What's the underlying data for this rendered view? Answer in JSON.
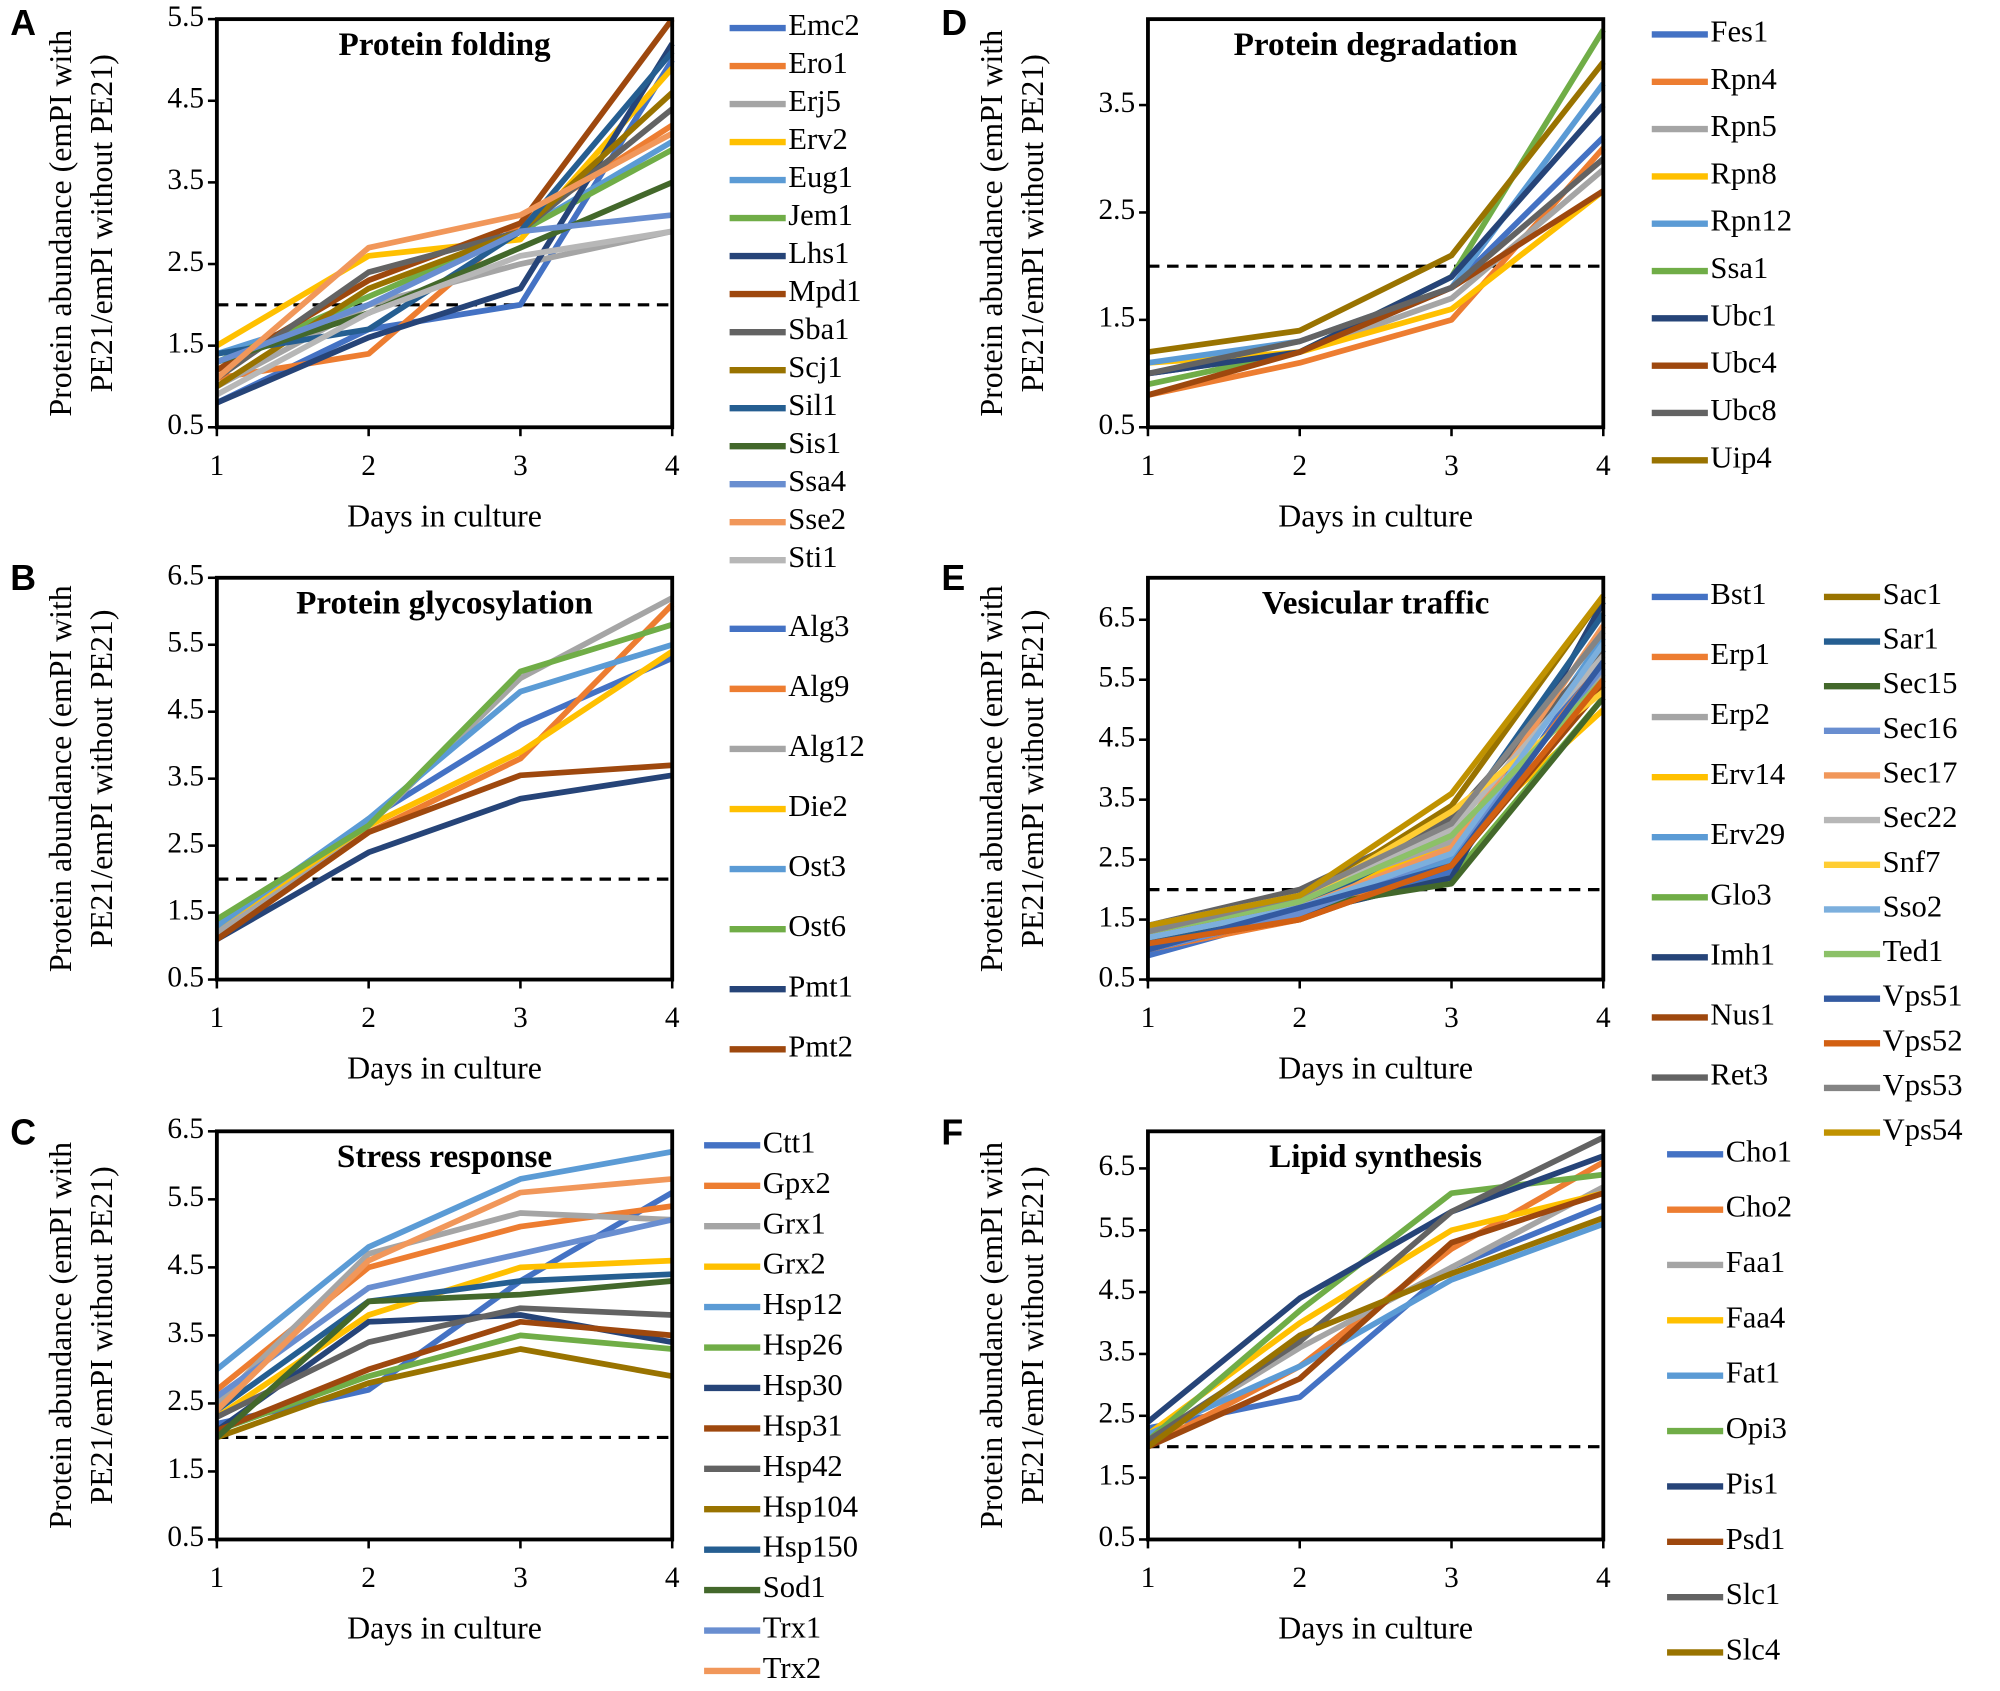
{
  "chart_data": [
    {
      "type": "line",
      "panel": "A",
      "title": "Protein folding",
      "xlabel": "Days in culture",
      "ylabel": [
        "Protein abundance (emPI with",
        "PE21/emPI without PE21)"
      ],
      "x": [
        1,
        2,
        3,
        4
      ],
      "xlim": [
        1,
        4
      ],
      "xticks": [
        1,
        2,
        3,
        4
      ],
      "ylim": [
        0.5,
        5.5
      ],
      "yticks": [
        0.5,
        1.5,
        2.5,
        3.5,
        4.5,
        5.5
      ],
      "threshold": 2,
      "series": [
        {
          "name": "Emc2",
          "color": "#4472c4",
          "values": [
            0.8,
            1.7,
            2.0,
            5.0
          ]
        },
        {
          "name": "Ero1",
          "color": "#ed7d31",
          "values": [
            1.1,
            1.4,
            3.0,
            4.2
          ]
        },
        {
          "name": "Erj5",
          "color": "#a5a5a5",
          "values": [
            1.0,
            2.0,
            2.5,
            2.9
          ]
        },
        {
          "name": "Erv2",
          "color": "#ffc000",
          "values": [
            1.5,
            2.6,
            2.8,
            4.9
          ]
        },
        {
          "name": "Eug1",
          "color": "#5b9bd5",
          "values": [
            1.4,
            2.0,
            2.9,
            4.0
          ]
        },
        {
          "name": "Jem1",
          "color": "#70ad47",
          "values": [
            1.3,
            2.1,
            2.9,
            3.9
          ]
        },
        {
          "name": "Lhs1",
          "color": "#264478",
          "values": [
            0.8,
            1.6,
            2.2,
            5.2
          ]
        },
        {
          "name": "Mpd1",
          "color": "#9e480e",
          "values": [
            1.2,
            2.3,
            3.0,
            5.5
          ]
        },
        {
          "name": "Sba1",
          "color": "#636363",
          "values": [
            1.1,
            2.4,
            2.9,
            4.4
          ]
        },
        {
          "name": "Scj1",
          "color": "#997300",
          "values": [
            1.0,
            2.2,
            2.9,
            4.6
          ]
        },
        {
          "name": "Sil1",
          "color": "#255e91",
          "values": [
            1.4,
            1.7,
            2.9,
            5.1
          ]
        },
        {
          "name": "Sis1",
          "color": "#43682b",
          "values": [
            1.3,
            1.9,
            2.7,
            3.5
          ]
        },
        {
          "name": "Ssa4",
          "color": "#698ed0",
          "values": [
            1.3,
            2.0,
            2.9,
            3.1
          ]
        },
        {
          "name": "Sse2",
          "color": "#f1975a",
          "values": [
            1.1,
            2.7,
            3.1,
            4.1
          ]
        },
        {
          "name": "Sti1",
          "color": "#b7b7b7",
          "values": [
            0.9,
            1.9,
            2.6,
            2.9
          ]
        }
      ]
    },
    {
      "type": "line",
      "panel": "B",
      "title": "Protein glycosylation",
      "xlabel": "Days in culture",
      "ylabel": [
        "Protein abundance (emPI with",
        "PE21/emPI without PE21)"
      ],
      "x": [
        1,
        2,
        3,
        4
      ],
      "xlim": [
        1,
        4
      ],
      "xticks": [
        1,
        2,
        3,
        4
      ],
      "ylim": [
        0.5,
        6.5
      ],
      "yticks": [
        0.5,
        1.5,
        2.5,
        3.5,
        4.5,
        5.5,
        6.5
      ],
      "threshold": 2,
      "series": [
        {
          "name": "Alg3",
          "color": "#4472c4",
          "values": [
            1.2,
            2.9,
            4.3,
            5.3
          ]
        },
        {
          "name": "Alg9",
          "color": "#ed7d31",
          "values": [
            1.1,
            2.7,
            3.8,
            6.1
          ]
        },
        {
          "name": "Alg12",
          "color": "#a5a5a5",
          "values": [
            1.2,
            2.8,
            5.0,
            6.2
          ]
        },
        {
          "name": "Die2",
          "color": "#ffc000",
          "values": [
            1.3,
            2.8,
            3.9,
            5.4
          ]
        },
        {
          "name": "Ost3",
          "color": "#5b9bd5",
          "values": [
            1.3,
            2.9,
            4.8,
            5.5
          ]
        },
        {
          "name": "Ost6",
          "color": "#70ad47",
          "values": [
            1.4,
            2.8,
            5.1,
            5.8
          ]
        },
        {
          "name": "Pmt1",
          "color": "#264478",
          "values": [
            1.1,
            2.4,
            3.2,
            3.55
          ]
        },
        {
          "name": "Pmt2",
          "color": "#9e480e",
          "values": [
            1.1,
            2.7,
            3.55,
            3.7
          ]
        }
      ]
    },
    {
      "type": "line",
      "panel": "C",
      "title": "Stress response",
      "xlabel": "Days in culture",
      "ylabel": [
        "Protein abundance (emPI with",
        "PE21/emPI without PE21)"
      ],
      "x": [
        1,
        2,
        3,
        4
      ],
      "xlim": [
        1,
        4
      ],
      "xticks": [
        1,
        2,
        3,
        4
      ],
      "ylim": [
        0.5,
        6.5
      ],
      "yticks": [
        0.5,
        1.5,
        2.5,
        3.5,
        4.5,
        5.5,
        6.5
      ],
      "threshold": 2,
      "series": [
        {
          "name": "Ctt1",
          "color": "#4472c4",
          "values": [
            2.2,
            2.7,
            4.3,
            5.6
          ]
        },
        {
          "name": "Gpx2",
          "color": "#ed7d31",
          "values": [
            2.7,
            4.5,
            5.1,
            5.4
          ]
        },
        {
          "name": "Grx1",
          "color": "#a5a5a5",
          "values": [
            2.5,
            4.7,
            5.3,
            5.2
          ]
        },
        {
          "name": "Grx2",
          "color": "#ffc000",
          "values": [
            2.3,
            3.8,
            4.5,
            4.6
          ]
        },
        {
          "name": "Hsp12",
          "color": "#5b9bd5",
          "values": [
            3.0,
            4.8,
            5.8,
            6.2
          ]
        },
        {
          "name": "Hsp26",
          "color": "#70ad47",
          "values": [
            2.1,
            2.9,
            3.5,
            3.3
          ]
        },
        {
          "name": "Hsp30",
          "color": "#264478",
          "values": [
            2.1,
            3.7,
            3.8,
            3.4
          ]
        },
        {
          "name": "Hsp31",
          "color": "#9e480e",
          "values": [
            2.1,
            3.0,
            3.7,
            3.5
          ]
        },
        {
          "name": "Hsp42",
          "color": "#636363",
          "values": [
            2.3,
            3.4,
            3.9,
            3.8
          ]
        },
        {
          "name": "Hsp104",
          "color": "#997300",
          "values": [
            2.0,
            2.8,
            3.3,
            2.9
          ]
        },
        {
          "name": "Hsp150",
          "color": "#255e91",
          "values": [
            2.4,
            4.0,
            4.3,
            4.4
          ]
        },
        {
          "name": "Sod1",
          "color": "#43682b",
          "values": [
            2.0,
            4.0,
            4.1,
            4.3
          ]
        },
        {
          "name": "Trx1",
          "color": "#698ed0",
          "values": [
            2.6,
            4.2,
            4.7,
            5.2
          ]
        },
        {
          "name": "Trx2",
          "color": "#f1975a",
          "values": [
            2.4,
            4.6,
            5.6,
            5.8
          ]
        }
      ]
    },
    {
      "type": "line",
      "panel": "D",
      "title": "Protein degradation",
      "xlabel": "Days in culture",
      "ylabel": [
        "Protein abundance (emPI with",
        "PE21/emPI without PE21)"
      ],
      "x": [
        1,
        2,
        3,
        4
      ],
      "xlim": [
        1,
        4
      ],
      "xticks": [
        1,
        2,
        3,
        4
      ],
      "ylim": [
        0.5,
        4.3
      ],
      "yticks": [
        0.5,
        1.5,
        2.5,
        3.5
      ],
      "threshold": 2,
      "series": [
        {
          "name": "Fes1",
          "color": "#4472c4",
          "values": [
            1.0,
            1.2,
            1.8,
            3.2
          ]
        },
        {
          "name": "Rpn4",
          "color": "#ed7d31",
          "values": [
            0.8,
            1.1,
            1.5,
            3.1
          ]
        },
        {
          "name": "Rpn5",
          "color": "#a5a5a5",
          "values": [
            1.0,
            1.2,
            1.7,
            2.9
          ]
        },
        {
          "name": "Rpn8",
          "color": "#ffc000",
          "values": [
            1.1,
            1.2,
            1.6,
            2.7
          ]
        },
        {
          "name": "Rpn12",
          "color": "#5b9bd5",
          "values": [
            1.1,
            1.3,
            1.8,
            3.7
          ]
        },
        {
          "name": "Ssa1",
          "color": "#70ad47",
          "values": [
            0.9,
            1.2,
            1.9,
            4.2
          ]
        },
        {
          "name": "Ubc1",
          "color": "#264478",
          "values": [
            1.0,
            1.2,
            1.9,
            3.5
          ]
        },
        {
          "name": "Ubc4",
          "color": "#9e480e",
          "values": [
            0.8,
            1.2,
            1.8,
            2.7
          ]
        },
        {
          "name": "Ubc8",
          "color": "#636363",
          "values": [
            1.0,
            1.3,
            1.8,
            3.0
          ]
        },
        {
          "name": "Uip4",
          "color": "#997300",
          "values": [
            1.2,
            1.4,
            2.1,
            3.9
          ]
        }
      ]
    },
    {
      "type": "line",
      "panel": "E",
      "title": "Vesicular traffic",
      "xlabel": "Days in culture",
      "ylabel": [
        "Protein abundance (emPI with",
        "PE21/emPI without PE21)"
      ],
      "x": [
        1,
        2,
        3,
        4
      ],
      "xlim": [
        1,
        4
      ],
      "xticks": [
        1,
        2,
        3,
        4
      ],
      "ylim": [
        0.5,
        7.2
      ],
      "yticks": [
        0.5,
        1.5,
        2.5,
        3.5,
        4.5,
        5.5,
        6.5
      ],
      "threshold": 2,
      "series": [
        {
          "name": "Bst1",
          "color": "#4472c4",
          "values": [
            0.9,
            1.6,
            2.3,
            6.0
          ]
        },
        {
          "name": "Erp1",
          "color": "#ed7d31",
          "values": [
            1.0,
            1.5,
            2.5,
            5.8
          ]
        },
        {
          "name": "Erp2",
          "color": "#a5a5a5",
          "values": [
            1.2,
            1.8,
            2.8,
            5.6
          ]
        },
        {
          "name": "Erv14",
          "color": "#ffc000",
          "values": [
            1.3,
            1.8,
            2.7,
            5.0
          ]
        },
        {
          "name": "Erv29",
          "color": "#5b9bd5",
          "values": [
            1.1,
            1.7,
            2.5,
            6.2
          ]
        },
        {
          "name": "Glo3",
          "color": "#70ad47",
          "values": [
            1.2,
            1.6,
            2.2,
            5.2
          ]
        },
        {
          "name": "Imh1",
          "color": "#264478",
          "values": [
            1.0,
            1.6,
            2.2,
            6.8
          ]
        },
        {
          "name": "Nus1",
          "color": "#9e480e",
          "values": [
            1.1,
            1.5,
            2.4,
            5.4
          ]
        },
        {
          "name": "Ret3",
          "color": "#636363",
          "values": [
            1.4,
            2.0,
            3.2,
            6.0
          ]
        },
        {
          "name": "Sac1",
          "color": "#997300",
          "values": [
            1.2,
            1.8,
            3.4,
            6.9
          ]
        },
        {
          "name": "Sar1",
          "color": "#255e91",
          "values": [
            1.1,
            1.7,
            3.0,
            6.6
          ]
        },
        {
          "name": "Sec15",
          "color": "#43682b",
          "values": [
            1.3,
            1.7,
            2.1,
            5.2
          ]
        },
        {
          "name": "Sec16",
          "color": "#698ed0",
          "values": [
            1.0,
            1.6,
            2.6,
            5.7
          ]
        },
        {
          "name": "Sec17",
          "color": "#f1975a",
          "values": [
            1.2,
            1.7,
            2.7,
            6.4
          ]
        },
        {
          "name": "Sec22",
          "color": "#b7b7b7",
          "values": [
            1.4,
            1.9,
            3.0,
            5.9
          ]
        },
        {
          "name": "Snf7",
          "color": "#ffcd33",
          "values": [
            1.3,
            1.8,
            3.3,
            5.3
          ]
        },
        {
          "name": "Sso2",
          "color": "#7cafdd",
          "values": [
            1.2,
            1.7,
            2.6,
            6.1
          ]
        },
        {
          "name": "Ted1",
          "color": "#8cc168",
          "values": [
            1.3,
            1.8,
            2.9,
            5.5
          ]
        },
        {
          "name": "Vps51",
          "color": "#335aa1",
          "values": [
            1.0,
            1.7,
            2.4,
            5.8
          ]
        },
        {
          "name": "Vps52",
          "color": "#d26012",
          "values": [
            1.1,
            1.5,
            2.4,
            5.5
          ]
        },
        {
          "name": "Vps53",
          "color": "#848484",
          "values": [
            1.3,
            1.9,
            3.1,
            6.3
          ]
        },
        {
          "name": "Vps54",
          "color": "#c09200",
          "values": [
            1.4,
            1.9,
            3.6,
            6.9
          ]
        }
      ]
    },
    {
      "type": "line",
      "panel": "F",
      "title": "Lipid synthesis",
      "xlabel": "Days in culture",
      "ylabel": [
        "Protein abundance (emPI with",
        "PE21/emPI without PE21)"
      ],
      "x": [
        1,
        2,
        3,
        4
      ],
      "xlim": [
        1,
        4
      ],
      "xticks": [
        1,
        2,
        3,
        4
      ],
      "ylim": [
        0.5,
        7.1
      ],
      "yticks": [
        0.5,
        1.5,
        2.5,
        3.5,
        4.5,
        5.5,
        6.5
      ],
      "threshold": 2,
      "series": [
        {
          "name": "Cho1",
          "color": "#4472c4",
          "values": [
            2.3,
            2.8,
            4.9,
            5.9
          ]
        },
        {
          "name": "Cho2",
          "color": "#ed7d31",
          "values": [
            2.0,
            3.3,
            5.2,
            6.6
          ]
        },
        {
          "name": "Faa1",
          "color": "#a5a5a5",
          "values": [
            2.1,
            3.6,
            4.9,
            6.2
          ]
        },
        {
          "name": "Faa4",
          "color": "#ffc000",
          "values": [
            2.2,
            4.0,
            5.5,
            6.1
          ]
        },
        {
          "name": "Fat1",
          "color": "#5b9bd5",
          "values": [
            2.2,
            3.3,
            4.7,
            5.6
          ]
        },
        {
          "name": "Opi3",
          "color": "#70ad47",
          "values": [
            2.1,
            4.2,
            6.1,
            6.4
          ]
        },
        {
          "name": "Pis1",
          "color": "#264478",
          "values": [
            2.4,
            4.4,
            5.8,
            6.7
          ]
        },
        {
          "name": "Psd1",
          "color": "#9e480e",
          "values": [
            2.0,
            3.1,
            5.3,
            6.1
          ]
        },
        {
          "name": "Slc1",
          "color": "#636363",
          "values": [
            2.1,
            3.7,
            5.8,
            7.0
          ]
        },
        {
          "name": "Slc4",
          "color": "#997300",
          "values": [
            2.0,
            3.8,
            4.8,
            5.7
          ]
        }
      ]
    }
  ]
}
